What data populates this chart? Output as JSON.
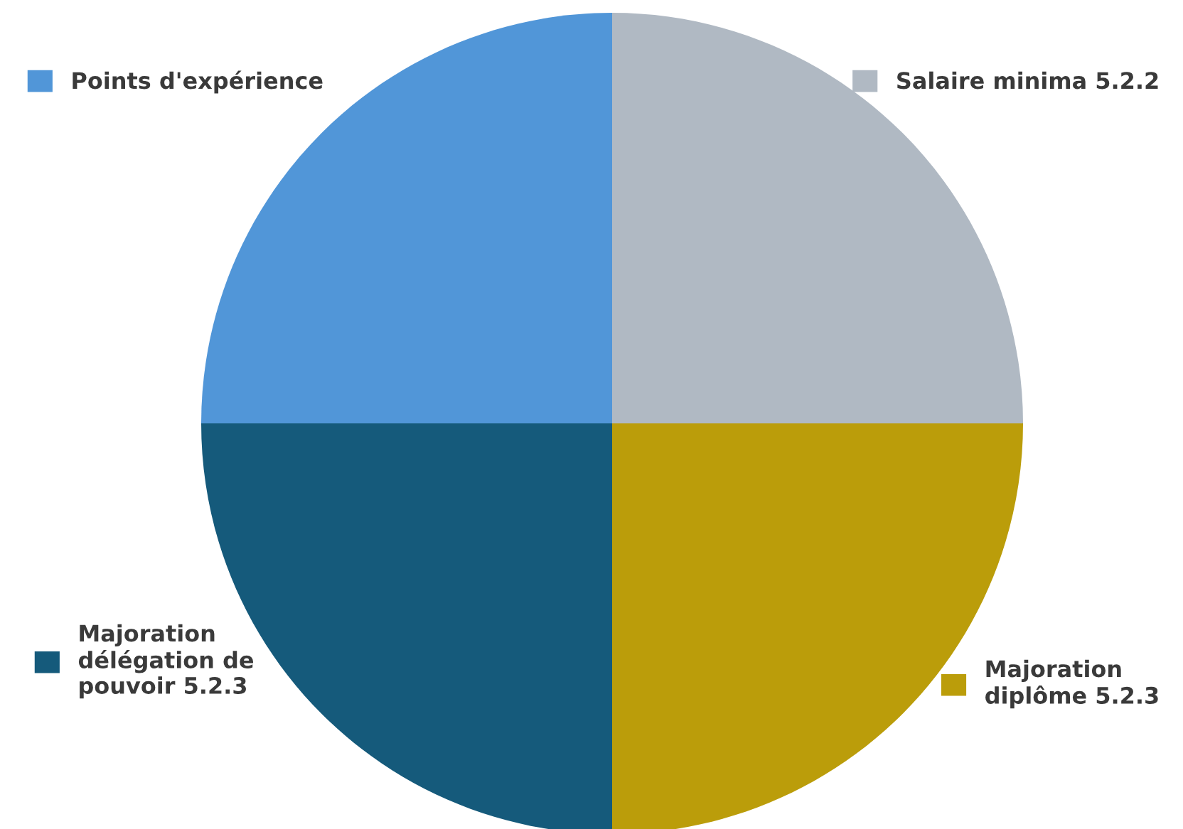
{
  "chart_data": {
    "type": "pie",
    "categories": [
      "Salaire minima 5.2.2",
      "Majoration\ndiplôme 5.2.3",
      "Majoration\ndélégation de\npouvoir 5.2.3",
      "Points d'expérience"
    ],
    "values": [
      25,
      25,
      25,
      25
    ],
    "colors": [
      "#b0b9c3",
      "#bb9d0a",
      "#155a7b",
      "#5196d8"
    ],
    "legend": "top left"
  }
}
